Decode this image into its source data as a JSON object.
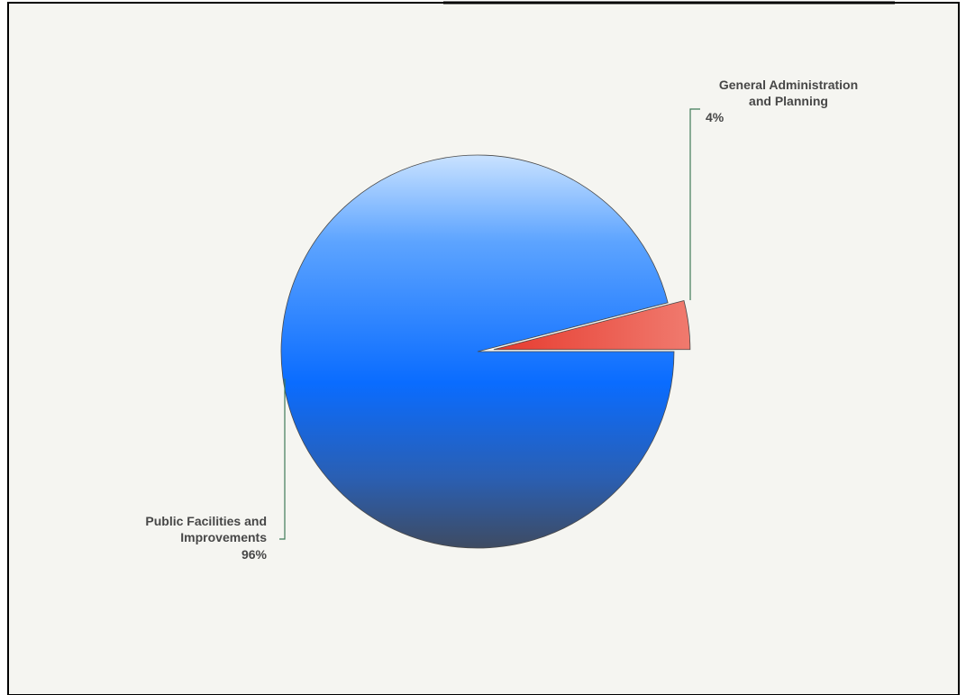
{
  "chart_data": {
    "type": "pie",
    "title": "",
    "slices": [
      {
        "label_lines": [
          "Public Facilities and",
          "Improvements"
        ],
        "percent_label": "96%",
        "value": 96,
        "color": "#1a74f0"
      },
      {
        "label_lines": [
          "General Administration",
          "and Planning"
        ],
        "percent_label": "4%",
        "value": 4,
        "color": "#e8463c",
        "exploded": true
      }
    ],
    "legend": "none",
    "background_color": "#f5f5f1",
    "leader_line_color": "#3f7a58"
  }
}
